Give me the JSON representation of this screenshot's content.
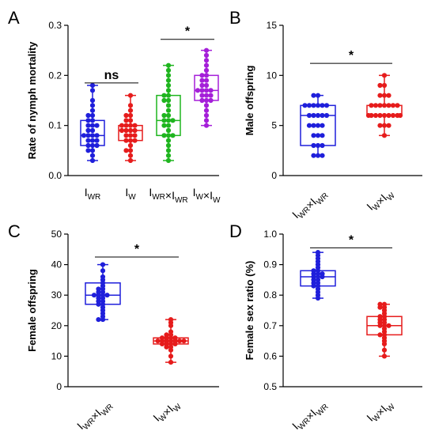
{
  "chart_data": [
    {
      "panel": "A",
      "type": "box",
      "title": "",
      "ylabel": "Rate of nymph mortality",
      "ylim": [
        0.0,
        0.3
      ],
      "yticks": [
        "0.0",
        "0.1",
        "0.2",
        "0.3"
      ],
      "categories": [
        {
          "base": "I",
          "sub": "WR",
          "cross": null
        },
        {
          "base": "I",
          "sub": "W",
          "cross": null
        },
        {
          "base": "I",
          "sub": "WR",
          "cross": {
            "base": "I",
            "sub": "WR"
          }
        },
        {
          "base": "I",
          "sub": "W",
          "cross": {
            "base": "I",
            "sub": "W"
          }
        }
      ],
      "colors": [
        "#1f1fdb",
        "#e61c1c",
        "#1fb51f",
        "#a51fd9"
      ],
      "boxes": [
        {
          "min": 0.03,
          "q1": 0.06,
          "median": 0.08,
          "q3": 0.11,
          "max": 0.18
        },
        {
          "min": 0.03,
          "q1": 0.07,
          "median": 0.09,
          "q3": 0.1,
          "max": 0.16
        },
        {
          "min": 0.03,
          "q1": 0.08,
          "median": 0.11,
          "q3": 0.16,
          "max": 0.22
        },
        {
          "min": 0.1,
          "q1": 0.15,
          "median": 0.17,
          "q3": 0.2,
          "max": 0.25
        }
      ],
      "points": [
        [
          0.03,
          0.04,
          0.05,
          0.05,
          0.06,
          0.06,
          0.06,
          0.07,
          0.07,
          0.07,
          0.08,
          0.08,
          0.08,
          0.08,
          0.09,
          0.09,
          0.1,
          0.1,
          0.1,
          0.11,
          0.11,
          0.12,
          0.12,
          0.13,
          0.14,
          0.15,
          0.17,
          0.18
        ],
        [
          0.03,
          0.04,
          0.05,
          0.05,
          0.06,
          0.07,
          0.07,
          0.07,
          0.08,
          0.08,
          0.08,
          0.09,
          0.09,
          0.09,
          0.09,
          0.1,
          0.1,
          0.1,
          0.1,
          0.11,
          0.11,
          0.12,
          0.12,
          0.13,
          0.14,
          0.16
        ],
        [
          0.03,
          0.04,
          0.05,
          0.06,
          0.07,
          0.08,
          0.08,
          0.08,
          0.09,
          0.1,
          0.1,
          0.11,
          0.11,
          0.11,
          0.12,
          0.12,
          0.13,
          0.14,
          0.15,
          0.15,
          0.16,
          0.16,
          0.17,
          0.18,
          0.19,
          0.2,
          0.21,
          0.22
        ],
        [
          0.1,
          0.11,
          0.12,
          0.13,
          0.14,
          0.15,
          0.15,
          0.15,
          0.16,
          0.16,
          0.16,
          0.17,
          0.17,
          0.17,
          0.17,
          0.18,
          0.18,
          0.19,
          0.19,
          0.2,
          0.2,
          0.21,
          0.22,
          0.23,
          0.24,
          0.25
        ]
      ],
      "annotations": [
        {
          "between": [
            0,
            1
          ],
          "y": 0.185,
          "label": "ns"
        },
        {
          "between": [
            2,
            3
          ],
          "y": 0.272,
          "label": "*"
        }
      ]
    },
    {
      "panel": "B",
      "type": "box",
      "title": "",
      "ylabel": "Male offspring",
      "ylim": [
        0,
        15
      ],
      "yticks": [
        "0",
        "5",
        "10",
        "15"
      ],
      "categories": [
        {
          "base": "I",
          "sub": "WR",
          "cross": {
            "base": "I",
            "sub": "WR"
          }
        },
        {
          "base": "I",
          "sub": "W",
          "cross": {
            "base": "I",
            "sub": "W"
          }
        }
      ],
      "colors": [
        "#1f1fdb",
        "#e61c1c"
      ],
      "boxes": [
        {
          "min": 2,
          "q1": 3,
          "median": 6,
          "q3": 7,
          "max": 8
        },
        {
          "min": 4,
          "q1": 6,
          "median": 6,
          "q3": 7,
          "max": 10
        }
      ],
      "points": [
        [
          2,
          2,
          2,
          3,
          3,
          3,
          4,
          4,
          4,
          5,
          5,
          5,
          5,
          6,
          6,
          6,
          6,
          6,
          7,
          7,
          7,
          7,
          7,
          7,
          8,
          8
        ],
        [
          4,
          5,
          5,
          5,
          6,
          6,
          6,
          6,
          6,
          6,
          6,
          6,
          6,
          7,
          7,
          7,
          7,
          7,
          7,
          7,
          8,
          8,
          8,
          9,
          9,
          10
        ]
      ],
      "annotations": [
        {
          "between": [
            0,
            1
          ],
          "y": 11.2,
          "label": "*"
        }
      ]
    },
    {
      "panel": "C",
      "type": "box",
      "title": "",
      "ylabel": "Female offspring",
      "ylim": [
        0,
        50
      ],
      "yticks": [
        "0",
        "10",
        "20",
        "30",
        "40",
        "50"
      ],
      "categories": [
        {
          "base": "I",
          "sub": "WR",
          "cross": {
            "base": "I",
            "sub": "WR"
          }
        },
        {
          "base": "I",
          "sub": "W",
          "cross": {
            "base": "I",
            "sub": "W"
          }
        }
      ],
      "colors": [
        "#1f1fdb",
        "#e61c1c"
      ],
      "boxes": [
        {
          "min": 22,
          "q1": 27,
          "median": 30,
          "q3": 34,
          "max": 40
        },
        {
          "min": 8,
          "q1": 14,
          "median": 15,
          "q3": 16,
          "max": 22
        }
      ],
      "points": [
        [
          22,
          22,
          23,
          24,
          25,
          26,
          27,
          27,
          28,
          28,
          29,
          29,
          30,
          30,
          30,
          30,
          31,
          31,
          32,
          32,
          33,
          34,
          35,
          36,
          38,
          40
        ],
        [
          8,
          10,
          12,
          13,
          13,
          14,
          14,
          14,
          14,
          15,
          15,
          15,
          15,
          15,
          15,
          15,
          16,
          16,
          16,
          16,
          17,
          17,
          18,
          20,
          21,
          22
        ]
      ],
      "annotations": [
        {
          "between": [
            0,
            1
          ],
          "y": 42.5,
          "label": "*"
        }
      ]
    },
    {
      "panel": "D",
      "type": "box",
      "title": "",
      "ylabel": "Female sex ratio (%)",
      "ylim": [
        0.5,
        1.0
      ],
      "yticks": [
        "0.5",
        "0.6",
        "0.7",
        "0.8",
        "0.9",
        "1.0"
      ],
      "categories": [
        {
          "base": "I",
          "sub": "WR",
          "cross": {
            "base": "I",
            "sub": "WR"
          }
        },
        {
          "base": "I",
          "sub": "W",
          "cross": {
            "base": "I",
            "sub": "W"
          }
        }
      ],
      "colors": [
        "#1f1fdb",
        "#e61c1c"
      ],
      "boxes": [
        {
          "min": 0.79,
          "q1": 0.83,
          "median": 0.86,
          "q3": 0.88,
          "max": 0.94
        },
        {
          "min": 0.6,
          "q1": 0.67,
          "median": 0.7,
          "q3": 0.73,
          "max": 0.77
        }
      ],
      "points": [
        [
          0.79,
          0.8,
          0.81,
          0.82,
          0.83,
          0.83,
          0.84,
          0.84,
          0.85,
          0.85,
          0.86,
          0.86,
          0.86,
          0.87,
          0.87,
          0.87,
          0.88,
          0.88,
          0.89,
          0.9,
          0.91,
          0.92,
          0.93,
          0.94
        ],
        [
          0.6,
          0.62,
          0.64,
          0.65,
          0.66,
          0.67,
          0.67,
          0.68,
          0.69,
          0.7,
          0.7,
          0.7,
          0.71,
          0.71,
          0.72,
          0.72,
          0.73,
          0.73,
          0.74,
          0.75,
          0.76,
          0.76,
          0.77,
          0.77
        ]
      ],
      "annotations": [
        {
          "between": [
            0,
            1
          ],
          "y": 0.955,
          "label": "*"
        }
      ]
    }
  ]
}
